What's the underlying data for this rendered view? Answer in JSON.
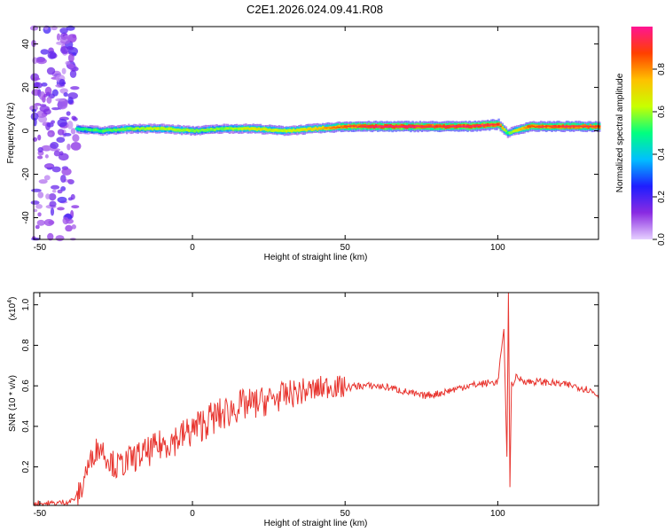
{
  "title": "C2E1.2026.024.09.41.R08",
  "chart_data": [
    {
      "type": "heatmap",
      "title": "C2E1.2026.024.09.41.R08",
      "xlabel": "Height of straight line (km)",
      "ylabel": "Frequency (Hz)",
      "xlim": [
        -52,
        133
      ],
      "ylim": [
        -50,
        48
      ],
      "xticks": [
        -50,
        0,
        50,
        100
      ],
      "yticks": [
        -40,
        -20,
        0,
        20,
        40
      ],
      "colorbar": {
        "label": "Normalized spectral amplitude",
        "range": [
          0,
          1
        ],
        "ticks": [
          "0.0",
          "0.2",
          "0.4",
          "0.6",
          "0.8"
        ],
        "colors": [
          "#e6d0ff",
          "#8a2be2",
          "#1e1eff",
          "#00bfff",
          "#00ff80",
          "#c8ff00",
          "#ffc000",
          "#ff4000",
          "#ff1493"
        ]
      },
      "ridge": {
        "x": [
          -38,
          -30,
          -20,
          -10,
          0,
          10,
          20,
          30,
          40,
          50,
          60,
          70,
          80,
          90,
          100,
          103,
          110,
          120,
          133
        ],
        "freq": [
          1,
          0,
          1,
          1,
          0,
          1,
          1,
          0,
          1,
          2,
          2,
          2,
          2,
          2,
          3,
          -1,
          2,
          2,
          2
        ],
        "amplitude": [
          0.45,
          0.5,
          0.55,
          0.6,
          0.55,
          0.55,
          0.65,
          0.6,
          0.7,
          0.85,
          0.95,
          0.95,
          0.9,
          0.95,
          0.9,
          0.5,
          0.85,
          0.9,
          0.88
        ]
      },
      "noise_region": {
        "x_range": [
          -52,
          -38
        ],
        "freq_range": [
          -50,
          48
        ]
      }
    },
    {
      "type": "line",
      "xlabel": "Height of straight line (km)",
      "ylabel": "SNR (10 * v/v)",
      "y_multiplier": "(x10",
      "y_multiplier_exp": "4",
      "xlim": [
        -52,
        133
      ],
      "ylim": [
        0.01,
        1.06
      ],
      "xticks": [
        -50,
        0,
        50,
        100
      ],
      "yticks": [
        "0.2",
        "0.4",
        "0.6",
        "0.8",
        "1.0"
      ],
      "color": "#e8352f",
      "series": [
        {
          "x": [
            -52,
            -45,
            -40,
            -38,
            -36,
            -35,
            -34,
            -32,
            -30,
            -28,
            -25,
            -22,
            -20,
            -15,
            -10,
            -5,
            0,
            5,
            10,
            15,
            20,
            25,
            30,
            35,
            40,
            45,
            50,
            55,
            60,
            65,
            70,
            75,
            80,
            85,
            90,
            95,
            100,
            102,
            103,
            103.5,
            104,
            104.5,
            105,
            106,
            110,
            115,
            120,
            125,
            130,
            133
          ],
          "y": [
            0.02,
            0.02,
            0.03,
            0.05,
            0.1,
            0.18,
            0.2,
            0.28,
            0.3,
            0.25,
            0.2,
            0.22,
            0.24,
            0.27,
            0.31,
            0.34,
            0.38,
            0.43,
            0.46,
            0.5,
            0.51,
            0.53,
            0.55,
            0.57,
            0.58,
            0.6,
            0.59,
            0.6,
            0.6,
            0.59,
            0.57,
            0.55,
            0.56,
            0.58,
            0.6,
            0.61,
            0.62,
            0.88,
            0.25,
            1.06,
            0.1,
            0.62,
            0.6,
            0.64,
            0.62,
            0.62,
            0.61,
            0.6,
            0.58,
            0.55
          ]
        }
      ]
    }
  ]
}
